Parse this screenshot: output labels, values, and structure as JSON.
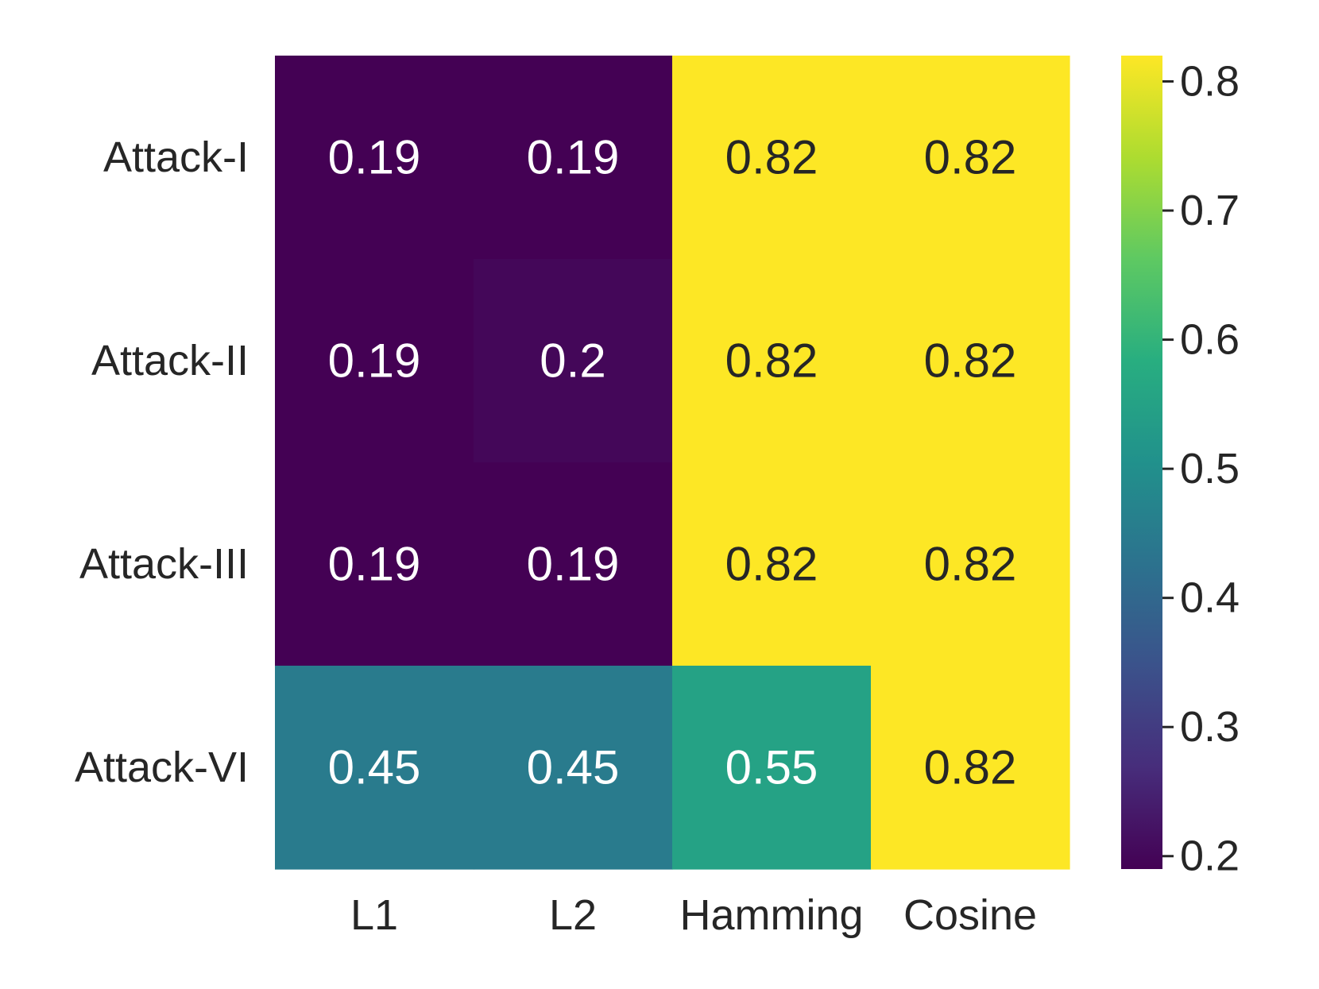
{
  "chart_data": {
    "type": "heatmap",
    "title": "",
    "xlabel": "",
    "ylabel": "",
    "colormap": "viridis",
    "row_labels": [
      "Attack-I",
      "Attack-II",
      "Attack-III",
      "Attack-VI"
    ],
    "col_labels": [
      "L1",
      "L2",
      "Hamming",
      "Cosine"
    ],
    "values": [
      [
        0.19,
        0.19,
        0.82,
        0.82
      ],
      [
        0.19,
        0.2,
        0.82,
        0.82
      ],
      [
        0.19,
        0.19,
        0.82,
        0.82
      ],
      [
        0.45,
        0.45,
        0.55,
        0.82
      ]
    ],
    "annotations": [
      [
        "0.19",
        "0.19",
        "0.82",
        "0.82"
      ],
      [
        "0.19",
        "0.2",
        "0.82",
        "0.82"
      ],
      [
        "0.19",
        "0.19",
        "0.82",
        "0.82"
      ],
      [
        "0.45",
        "0.45",
        "0.55",
        "0.82"
      ]
    ],
    "colorbar": {
      "vmin": 0.19,
      "vmax": 0.82,
      "ticks": [
        0.2,
        0.3,
        0.4,
        0.5,
        0.6,
        0.7,
        0.8
      ],
      "tick_labels": [
        "0.2",
        "0.3",
        "0.4",
        "0.5",
        "0.6",
        "0.7",
        "0.8"
      ],
      "placement": "right"
    },
    "text_colors": {
      "light": "#ffffff",
      "dark": "#262626"
    }
  }
}
